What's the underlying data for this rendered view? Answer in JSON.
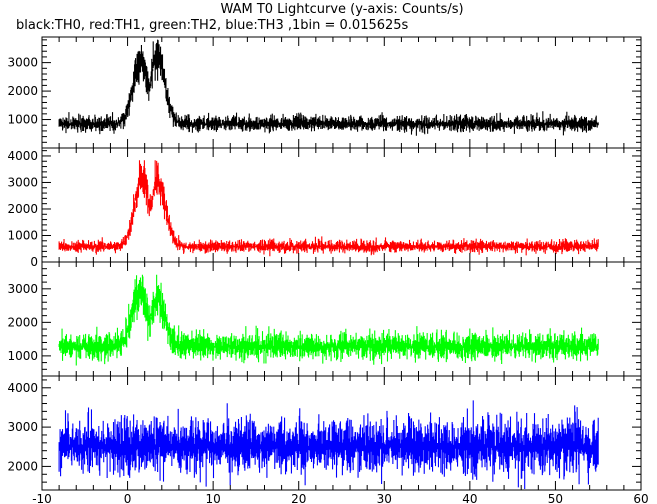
{
  "chart_data": {
    "type": "line",
    "title": "WAM T0 Lightcurve (y-axis: Counts/s)",
    "subtitle": "black:TH0, red:TH1, green:TH2, blue:TH3 ,1bin = 0.015625s",
    "xlim": [
      -10,
      60
    ],
    "x_ticks": [
      -10,
      0,
      10,
      20,
      30,
      40,
      50,
      60
    ],
    "x_range_data": [
      -8,
      55
    ],
    "grid": false,
    "panels": [
      {
        "series": "TH0",
        "color": "#000000",
        "ylim": [
          0,
          3900
        ],
        "y_ticks": [
          1000,
          2000,
          3000
        ],
        "baseline": 850,
        "noise": 180,
        "peaks": [
          {
            "x": 1.5,
            "y": 3400
          },
          {
            "x": 3.5,
            "y": 3600
          }
        ],
        "dip_x": 2.5
      },
      {
        "series": "TH1",
        "color": "#ff0000",
        "ylim": [
          0,
          4300
        ],
        "y_ticks": [
          0,
          1000,
          2000,
          3000,
          4000
        ],
        "baseline": 580,
        "noise": 150,
        "peaks": [
          {
            "x": 1.7,
            "y": 3600
          },
          {
            "x": 3.6,
            "y": 3300
          }
        ],
        "dip_x": 2.6
      },
      {
        "series": "TH2",
        "color": "#00ff00",
        "ylim": [
          400,
          3800
        ],
        "y_ticks": [
          1000,
          2000,
          3000
        ],
        "baseline": 1280,
        "noise": 260,
        "peaks": [
          {
            "x": 1.4,
            "y": 3200
          },
          {
            "x": 3.5,
            "y": 2900
          }
        ],
        "dip_x": 2.5
      },
      {
        "series": "TH3",
        "color": "#0000ff",
        "ylim": [
          1400,
          4300
        ],
        "y_ticks": [
          2000,
          3000,
          4000
        ],
        "baseline": 2500,
        "noise": 450,
        "peaks": [],
        "dip_x": null
      }
    ]
  }
}
